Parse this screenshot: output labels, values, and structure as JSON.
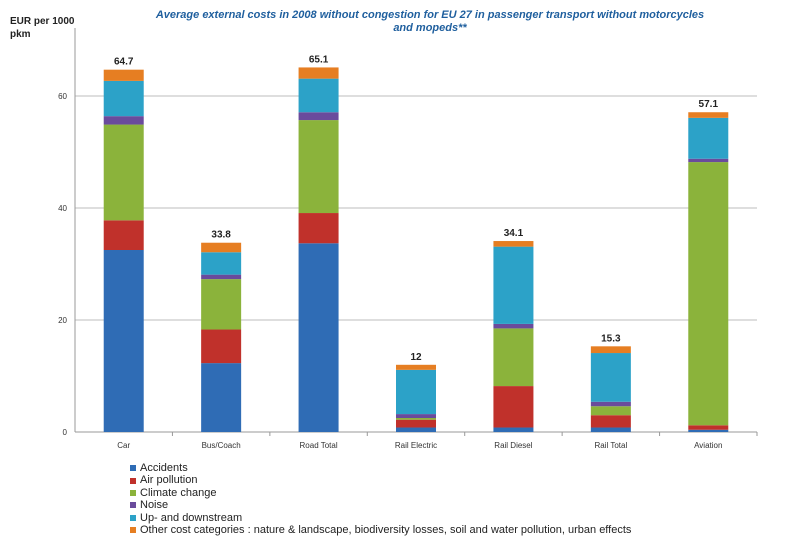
{
  "chart_data": {
    "type": "stacked-bar",
    "title_line1": "Average external costs  in 2008 without congestion  for EU 27 in passenger transport without motorcycles",
    "title_line2": "and mopeds**",
    "ylabel_line1": "EUR per 1000",
    "ylabel_line2": "pkm",
    "ylim": [
      0,
      70
    ],
    "yticks": [
      0,
      20,
      40,
      60
    ],
    "grid": true,
    "categories": [
      "Car",
      "Bus/Coach",
      "Road Total",
      "Rail Electric",
      "Rail Diesel",
      "Rail Total",
      "Aviation"
    ],
    "totals": [
      "64.7",
      "33.8",
      "65.1",
      "12",
      "34.1",
      "15.3",
      "57.1"
    ],
    "series": [
      {
        "name": "Accidents",
        "color": "#2f6cb5",
        "values": [
          32.5,
          12.3,
          33.7,
          0.8,
          0.8,
          0.8,
          0.4
        ]
      },
      {
        "name": "Air pollution",
        "color": "#c0312b",
        "values": [
          5.3,
          6.0,
          5.4,
          1.4,
          7.4,
          2.2,
          0.8
        ]
      },
      {
        "name": "Climate change",
        "color": "#8bb33b",
        "values": [
          17.1,
          9.0,
          16.6,
          0.3,
          10.3,
          1.6,
          47.0
        ]
      },
      {
        "name": "Noise",
        "color": "#6a4b9c",
        "values": [
          1.5,
          0.8,
          1.4,
          0.7,
          0.8,
          0.8,
          0.6
        ]
      },
      {
        "name": "Up- and downstream",
        "color": "#2ca2c8",
        "values": [
          6.3,
          4.0,
          6.0,
          7.9,
          13.8,
          8.7,
          7.3
        ]
      },
      {
        "name": "Other cost categories : nature & landscape, biodiversity losses, soil and water pollution, urban effects",
        "color": "#e67e22",
        "values": [
          2.0,
          1.7,
          2.0,
          0.9,
          1.0,
          1.2,
          1.0
        ]
      }
    ]
  }
}
